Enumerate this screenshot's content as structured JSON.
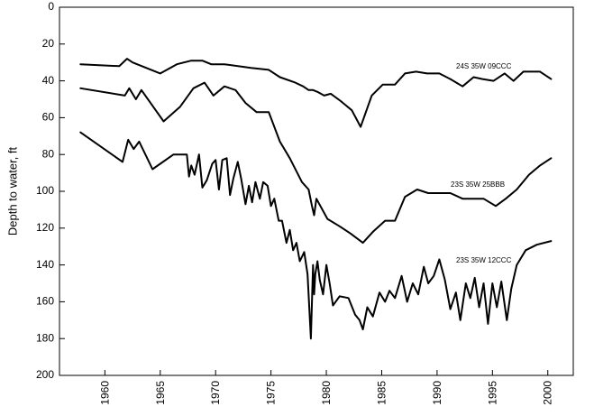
{
  "chart_data": {
    "type": "line",
    "title": "",
    "xlabel": "",
    "ylabel": "Depth to water, ft",
    "xlim": [
      1955.9,
      2002.3
    ],
    "ylim": [
      0,
      200
    ],
    "y_inverted": true,
    "grid": false,
    "x_ticks": [
      1960,
      1965,
      1970,
      1975,
      1980,
      1985,
      1990,
      1995,
      2000
    ],
    "y_ticks": [
      0,
      20,
      40,
      60,
      80,
      100,
      120,
      140,
      160,
      180,
      200
    ],
    "series": [
      {
        "name": "24S 35W 09CCC",
        "x": [
          1957.8,
          1961.3,
          1962.0,
          1962.5,
          1965.0,
          1966.5,
          1967.8,
          1968.8,
          1969.6,
          1970.8,
          1973.2,
          1974.8,
          1975.8,
          1977.2,
          1977.9,
          1978.4,
          1978.8,
          1979.2,
          1979.8,
          1980.4,
          1981.3,
          1982.3,
          1983.1,
          1984.1,
          1985.1,
          1986.2,
          1987.1,
          1988.1,
          1989.1,
          1990.2,
          1991.2,
          1992.3,
          1993.3,
          1994.1,
          1995.1,
          1996.1,
          1996.9,
          1997.8,
          1998.5,
          1999.3,
          2000.3
        ],
        "values": [
          31,
          32,
          28,
          30,
          36,
          31,
          29,
          29,
          31,
          31,
          33,
          34,
          38,
          41,
          43,
          45,
          45,
          46,
          48,
          47,
          51,
          56,
          65,
          48,
          42,
          42,
          36,
          35,
          36,
          36,
          39,
          43,
          38,
          39,
          40,
          36,
          40,
          35,
          35,
          35,
          39
        ]
      },
      {
        "name": "23S 35W 25BBB",
        "x": [
          1957.8,
          1961.8,
          1962.2,
          1962.8,
          1963.3,
          1965.3,
          1966.8,
          1968.0,
          1969.0,
          1969.8,
          1970.8,
          1971.8,
          1972.7,
          1973.7,
          1974.8,
          1975.8,
          1976.7,
          1977.8,
          1978.4,
          1978.7,
          1978.9,
          1979.1,
          1980.1,
          1981.2,
          1982.2,
          1983.3,
          1984.2,
          1985.3,
          1986.2,
          1987.1,
          1988.2,
          1989.2,
          1990.3,
          1991.2,
          1992.3,
          1993.3,
          1994.2,
          1995.3,
          1996.2,
          1997.2,
          1998.3,
          1999.3,
          2000.3
        ],
        "values": [
          44,
          48,
          44,
          50,
          45,
          62,
          54,
          44,
          41,
          48,
          43,
          45,
          52,
          57,
          57,
          73,
          82,
          95,
          99,
          108,
          113,
          104,
          115,
          119,
          123,
          128,
          122,
          116,
          116,
          103,
          99,
          101,
          101,
          101,
          104,
          104,
          104,
          108,
          104,
          99,
          91,
          86,
          82
        ]
      },
      {
        "name": "23S 35W 12CCC",
        "x": [
          1957.8,
          1961.6,
          1962.1,
          1962.6,
          1963.1,
          1964.3,
          1966.2,
          1967.4,
          1967.6,
          1967.8,
          1968.1,
          1968.5,
          1968.8,
          1969.2,
          1969.7,
          1970.0,
          1970.3,
          1970.6,
          1971.0,
          1971.3,
          1971.6,
          1972.0,
          1972.3,
          1972.7,
          1973.0,
          1973.3,
          1973.6,
          1974.0,
          1974.3,
          1974.7,
          1975.0,
          1975.3,
          1975.7,
          1976.0,
          1976.4,
          1976.7,
          1977.0,
          1977.3,
          1977.6,
          1978.0,
          1978.3,
          1978.6,
          1978.8,
          1978.9,
          1979.0,
          1979.2,
          1979.4,
          1979.7,
          1980.0,
          1980.3,
          1980.6,
          1981.2,
          1982.0,
          1982.6,
          1983.0,
          1983.3,
          1983.7,
          1984.2,
          1984.8,
          1985.3,
          1985.7,
          1986.2,
          1986.8,
          1987.3,
          1987.8,
          1988.3,
          1988.8,
          1989.2,
          1989.7,
          1990.2,
          1990.7,
          1991.2,
          1991.7,
          1992.1,
          1992.6,
          1993.0,
          1993.4,
          1993.8,
          1994.2,
          1994.6,
          1995.0,
          1995.4,
          1995.8,
          1996.3,
          1996.7,
          1997.2,
          1998.0,
          1999.0,
          2000.3
        ],
        "values": [
          68,
          84,
          72,
          77,
          73,
          88,
          80,
          80,
          92,
          86,
          91,
          80,
          98,
          94,
          85,
          83,
          99,
          83,
          82,
          102,
          93,
          84,
          93,
          107,
          97,
          106,
          95,
          104,
          95,
          97,
          108,
          104,
          116,
          116,
          128,
          121,
          132,
          128,
          138,
          133,
          145,
          180,
          140,
          156,
          145,
          138,
          148,
          156,
          140,
          150,
          162,
          157,
          158,
          167,
          170,
          175,
          163,
          168,
          155,
          160,
          154,
          158,
          146,
          160,
          150,
          156,
          141,
          150,
          146,
          137,
          148,
          164,
          155,
          170,
          150,
          158,
          147,
          163,
          150,
          172,
          150,
          163,
          149,
          170,
          153,
          140,
          132,
          129,
          127
        ]
      }
    ]
  }
}
